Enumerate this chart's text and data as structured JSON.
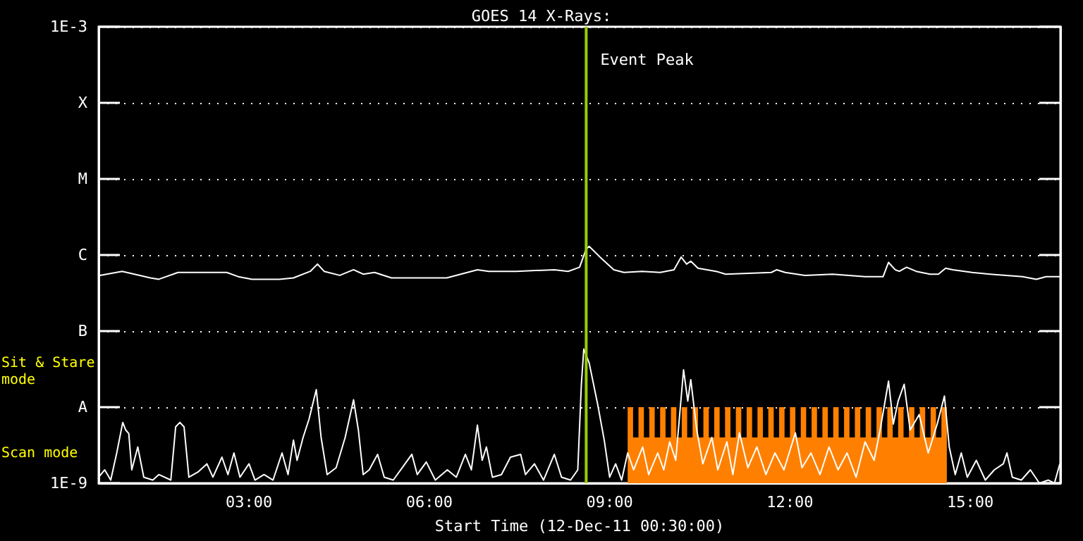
{
  "chart_data": {
    "type": "line",
    "title": "GOES 14 X-Rays:",
    "xlabel": "Start Time (12-Dec-11 00:30:00)",
    "annotations": [
      "Sit & Stare mode",
      "Scan mode"
    ],
    "log": "y",
    "grid": "y",
    "xlim": [
      0.5,
      16.5
    ],
    "xticks": [
      {
        "value": 3,
        "label": "03:00"
      },
      {
        "value": 6,
        "label": "06:00"
      },
      {
        "value": 9,
        "label": "09:00"
      },
      {
        "value": 12,
        "label": "12:00"
      },
      {
        "value": 15,
        "label": "15:00"
      }
    ],
    "ylim": [
      1e-09,
      0.001
    ],
    "yticks": [
      {
        "value": 1e-09,
        "label": "1E-9"
      },
      {
        "value": 1e-08,
        "label": "A"
      },
      {
        "value": 1e-07,
        "label": "B"
      },
      {
        "value": 1e-06,
        "label": "C"
      },
      {
        "value": 1e-05,
        "label": "M"
      },
      {
        "value": 0.0001,
        "label": "X"
      },
      {
        "value": 0.001,
        "label": "1E-3"
      }
    ],
    "ref_lines": [
      {
        "axis": "x",
        "value": 8.61,
        "label": "Event Peak",
        "color": "#99cc00"
      }
    ],
    "series": [
      {
        "type": "area",
        "color": "#ff8000",
        "x": [
          9.3,
          9.3,
          9.39,
          9.39,
          9.48,
          9.48,
          9.57,
          9.57,
          9.66,
          9.66,
          9.75,
          9.75,
          9.84,
          9.84,
          9.93,
          9.93,
          10.02,
          10.02,
          10.11,
          10.11,
          10.2,
          10.2,
          10.29,
          10.29,
          10.38,
          10.38,
          10.47,
          10.47,
          10.56,
          10.56,
          10.65,
          10.65,
          10.74,
          10.74,
          10.83,
          10.83,
          10.92,
          10.92,
          11.01,
          11.01,
          11.1,
          11.1,
          11.19,
          11.19,
          11.28,
          11.28,
          11.37,
          11.37,
          11.46,
          11.46,
          11.55,
          11.55,
          11.64,
          11.64,
          11.73,
          11.73,
          11.82,
          11.82,
          11.91,
          11.91,
          12.0,
          12.0,
          12.09,
          12.09,
          12.18,
          12.18,
          12.27,
          12.27,
          12.36,
          12.36,
          12.45,
          12.45,
          12.54,
          12.54,
          12.63,
          12.63,
          12.72,
          12.72,
          12.81,
          12.81,
          12.9,
          12.9,
          12.99,
          12.99,
          13.08,
          13.08,
          13.17,
          13.17,
          13.26,
          13.26,
          13.35,
          13.35,
          13.44,
          13.44,
          13.53,
          13.53,
          13.62,
          13.62,
          13.71,
          13.71,
          13.8,
          13.8,
          13.89,
          13.89,
          13.98,
          13.98,
          14.07,
          14.07,
          14.16,
          14.16,
          14.25,
          14.25,
          14.34,
          14.34,
          14.43,
          14.43,
          14.52,
          14.52,
          14.61,
          14.61
        ],
        "values": [
          4e-09,
          1e-08,
          1e-08,
          4e-09,
          4e-09,
          1e-08,
          1e-08,
          4e-09,
          4e-09,
          1e-08,
          1e-08,
          4e-09,
          4e-09,
          1e-08,
          1e-08,
          4e-09,
          4e-09,
          1e-08,
          1e-08,
          4e-09,
          4e-09,
          1e-08,
          1e-08,
          4e-09,
          4e-09,
          1e-08,
          1e-08,
          4e-09,
          4e-09,
          1e-08,
          1e-08,
          4e-09,
          4e-09,
          1e-08,
          1e-08,
          4e-09,
          4e-09,
          1e-08,
          1e-08,
          4e-09,
          4e-09,
          1e-08,
          1e-08,
          4e-09,
          4e-09,
          1e-08,
          1e-08,
          4e-09,
          4e-09,
          1e-08,
          1e-08,
          4e-09,
          4e-09,
          1e-08,
          1e-08,
          4e-09,
          4e-09,
          1e-08,
          1e-08,
          4e-09,
          4e-09,
          1e-08,
          1e-08,
          4e-09,
          4e-09,
          1e-08,
          1e-08,
          4e-09,
          4e-09,
          1e-08,
          1e-08,
          4e-09,
          4e-09,
          1e-08,
          1e-08,
          4e-09,
          4e-09,
          1e-08,
          1e-08,
          4e-09,
          4e-09,
          1e-08,
          1e-08,
          4e-09,
          4e-09,
          1e-08,
          1e-08,
          4e-09,
          4e-09,
          1e-08,
          1e-08,
          4e-09,
          4e-09,
          1e-08,
          1e-08,
          4e-09,
          4e-09,
          1e-08,
          1e-08,
          4e-09,
          4e-09,
          1e-08,
          1e-08,
          4e-09,
          4e-09,
          1e-08,
          1e-08,
          4e-09,
          4e-09,
          1e-08,
          1e-08,
          4e-09,
          4e-09,
          1e-08,
          1e-08,
          4e-09,
          4e-09,
          1e-08,
          1e-08,
          4e-09
        ]
      },
      {
        "color": "#ffffff",
        "x": [
          0.52,
          0.89,
          1.36,
          1.5,
          1.82,
          2.63,
          2.82,
          3.05,
          3.51,
          3.74,
          4.02,
          4.14,
          4.25,
          4.51,
          4.74,
          4.9,
          5.09,
          5.37,
          5.6,
          6.29,
          6.8,
          6.99,
          7.45,
          8.08,
          8.31,
          8.5,
          8.61,
          8.66,
          8.84,
          9.07,
          9.24,
          9.54,
          9.84,
          10.07,
          10.19,
          10.28,
          10.35,
          10.47,
          10.77,
          10.93,
          11.69,
          11.78,
          11.92,
          12.25,
          12.71,
          13.25,
          13.55,
          13.64,
          13.75,
          13.82,
          13.94,
          14.1,
          14.33,
          14.47,
          14.59,
          14.71,
          15.03,
          15.33,
          15.87,
          16.1,
          16.26,
          16.49
        ],
        "values": [
          5.4e-07,
          6.1e-07,
          5e-07,
          4.8e-07,
          5.9e-07,
          5.9e-07,
          5.2e-07,
          4.8e-07,
          4.8e-07,
          5e-07,
          6.1e-07,
          7.6e-07,
          6.1e-07,
          5.4e-07,
          6.4e-07,
          5.6e-07,
          5.9e-07,
          5e-07,
          5e-07,
          5e-07,
          6.4e-07,
          6.1e-07,
          6.1e-07,
          6.4e-07,
          6.1e-07,
          6.9e-07,
          1.2e-06,
          1.3e-06,
          9.4e-07,
          6.4e-07,
          5.9e-07,
          6.1e-07,
          5.9e-07,
          6.4e-07,
          9.4e-07,
          7.6e-07,
          8.3e-07,
          6.7e-07,
          6.1e-07,
          5.6e-07,
          5.9e-07,
          6.4e-07,
          5.9e-07,
          5.4e-07,
          5.6e-07,
          5.2e-07,
          5.2e-07,
          8e-07,
          6.4e-07,
          6.1e-07,
          6.9e-07,
          6.1e-07,
          5.6e-07,
          5.6e-07,
          6.7e-07,
          6.4e-07,
          5.9e-07,
          5.6e-07,
          5.2e-07,
          4.8e-07,
          5.2e-07,
          5.2e-07
        ]
      },
      {
        "color": "#ffffff",
        "x": [
          0.5,
          0.6,
          0.7,
          0.8,
          0.9,
          0.95,
          1.0,
          1.05,
          1.15,
          1.25,
          1.4,
          1.5,
          1.7,
          1.78,
          1.85,
          1.92,
          2.0,
          2.15,
          2.3,
          2.4,
          2.55,
          2.65,
          2.75,
          2.85,
          3.0,
          3.1,
          3.25,
          3.4,
          3.55,
          3.65,
          3.74,
          3.8,
          3.9,
          4.0,
          4.12,
          4.2,
          4.3,
          4.45,
          4.6,
          4.74,
          4.82,
          4.9,
          5.0,
          5.14,
          5.25,
          5.4,
          5.55,
          5.71,
          5.8,
          5.95,
          6.1,
          6.3,
          6.45,
          6.6,
          6.7,
          6.8,
          6.88,
          6.95,
          7.05,
          7.2,
          7.35,
          7.52,
          7.6,
          7.75,
          7.9,
          8.08,
          8.2,
          8.35,
          8.47,
          8.53,
          8.57,
          8.66,
          8.8,
          8.91,
          9.0,
          9.1,
          9.2,
          9.3,
          9.4,
          9.55,
          9.65,
          9.8,
          9.9,
          10.0,
          10.1,
          10.23,
          10.3,
          10.35,
          10.45,
          10.55,
          10.7,
          10.8,
          10.95,
          11.05,
          11.16,
          11.3,
          11.45,
          11.6,
          11.75,
          11.9,
          12.09,
          12.2,
          12.35,
          12.5,
          12.65,
          12.8,
          12.95,
          13.1,
          13.25,
          13.4,
          13.5,
          13.64,
          13.72,
          13.8,
          13.9,
          14.0,
          14.15,
          14.3,
          14.45,
          14.57,
          14.65,
          14.75,
          14.85,
          14.95,
          15.1,
          15.25,
          15.4,
          15.55,
          15.61,
          15.7,
          15.85,
          16.0,
          16.15,
          16.3,
          16.4,
          16.49
        ],
        "values": [
          1.2e-09,
          1.5e-09,
          1.1e-09,
          2.5e-09,
          6.3e-09,
          5e-09,
          4.5e-09,
          1.5e-09,
          3e-09,
          1.2e-09,
          1.1e-09,
          1.3e-09,
          1.1e-09,
          5.5e-09,
          6.3e-09,
          5.5e-09,
          1.2e-09,
          1.4e-09,
          1.8e-09,
          1.2e-09,
          2.2e-09,
          1.3e-09,
          2.5e-09,
          1.2e-09,
          1.8e-09,
          1.1e-09,
          1.3e-09,
          1.1e-09,
          2.5e-09,
          1.3e-09,
          3.7e-09,
          2e-09,
          4e-09,
          7e-09,
          1.7e-08,
          4e-09,
          1.3e-09,
          1.6e-09,
          4e-09,
          1.25e-08,
          5e-09,
          1.3e-09,
          1.5e-09,
          2.4e-09,
          1.2e-09,
          1.1e-09,
          1.6e-09,
          2.4e-09,
          1.3e-09,
          1.9e-09,
          1.1e-09,
          1.5e-09,
          1.2e-09,
          2.4e-09,
          1.5e-09,
          5.8e-09,
          2e-09,
          3e-09,
          1.2e-09,
          1.3e-09,
          2.2e-09,
          2.4e-09,
          1.3e-09,
          1.8e-09,
          1.1e-09,
          2.4e-09,
          1.2e-09,
          1.1e-09,
          1.5e-09,
          2e-08,
          5.8e-08,
          3.8e-08,
          1.1e-08,
          3.7e-09,
          1.2e-09,
          1.8e-09,
          1.1e-09,
          2.5e-09,
          1.5e-09,
          3e-09,
          1.3e-09,
          2.5e-09,
          1.5e-09,
          3.5e-09,
          2e-09,
          3.1e-08,
          1.2e-08,
          2.3e-08,
          5e-09,
          1.8e-09,
          4e-09,
          1.5e-09,
          3.5e-09,
          1.3e-09,
          4.6e-09,
          1.6e-09,
          3e-09,
          1.3e-09,
          2.5e-09,
          1.5e-09,
          4.6e-09,
          1.6e-09,
          2.5e-09,
          1.3e-09,
          3e-09,
          1.5e-09,
          2.5e-09,
          1.2e-09,
          3.5e-09,
          2e-09,
          5e-09,
          2.2e-08,
          6e-09,
          1.2e-08,
          2e-08,
          5e-09,
          8e-09,
          2.5e-09,
          6e-09,
          1.4e-08,
          3e-09,
          1.3e-09,
          2.5e-09,
          1.2e-09,
          2e-09,
          1.1e-09,
          1.5e-09,
          1.8e-09,
          2.5e-09,
          1.2e-09,
          1.1e-09,
          1.5e-09,
          1e-09,
          1.1e-09,
          1e-09,
          1.8e-09
        ]
      }
    ]
  }
}
